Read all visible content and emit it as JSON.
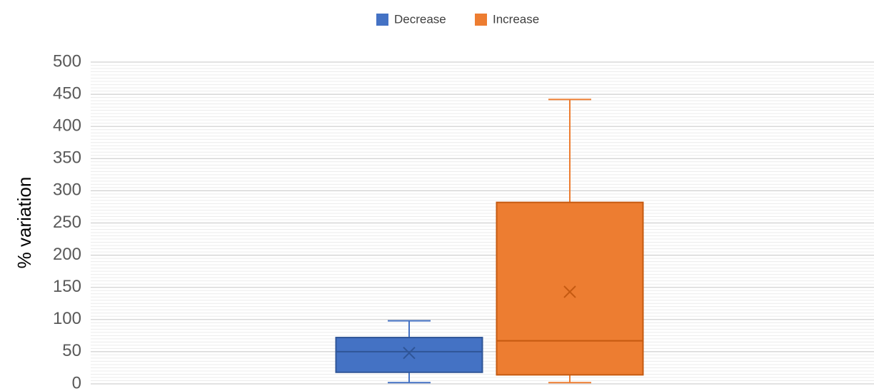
{
  "chart_data": {
    "type": "box",
    "y_label": "% variation",
    "series": [
      {
        "name": "Decrease",
        "color": "#4472c4",
        "min": 2,
        "q1": 18,
        "median": 50,
        "q3": 72,
        "max": 98,
        "mean": 48
      },
      {
        "name": "Increase",
        "color": "#ed7d31",
        "min": 2,
        "q1": 14,
        "median": 67,
        "q3": 282,
        "max": 442,
        "mean": 143
      }
    ],
    "ylim": [
      0,
      500
    ],
    "yticks": [
      0,
      50,
      100,
      150,
      200,
      250,
      300,
      350,
      400,
      450,
      500
    ],
    "grid": true,
    "minor_grid": true,
    "legend": "top"
  }
}
